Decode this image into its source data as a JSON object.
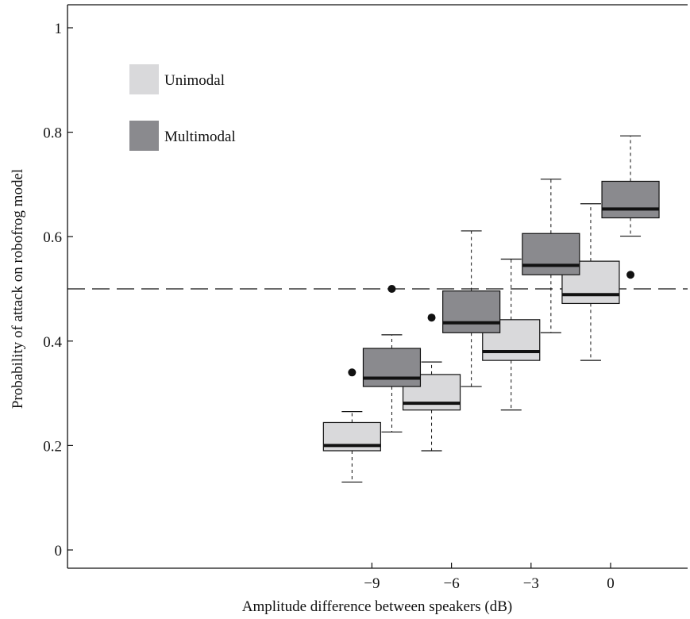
{
  "chart_data": {
    "type": "box",
    "title": "",
    "xlabel": "Amplitude difference between speakers (dB)",
    "ylabel": "Probability of attack on robofrog model",
    "ylim": [
      0,
      1
    ],
    "xlim": [
      -11.6,
      1.4
    ],
    "y_ticks": [
      0,
      0.2,
      0.4,
      0.6,
      0.8,
      1
    ],
    "y_tick_labels": [
      "0",
      "0.2",
      "0.4",
      "0.6",
      "0.8",
      "1"
    ],
    "x_ticks": [
      -9,
      -6,
      -3,
      0
    ],
    "x_tick_labels": [
      "−9",
      "−6",
      "−3",
      "0"
    ],
    "reference_line": {
      "y": 0.5,
      "style": "dashed"
    },
    "grid": false,
    "legend_position": "top-left",
    "colors": {
      "Unimodal": "#d9d9db",
      "Multimodal": "#8a8a8e",
      "median": "#111111"
    },
    "series": [
      {
        "name": "Unimodal",
        "boxes": [
          {
            "x": -9.75,
            "whisker_low": 0.13,
            "q1": 0.19,
            "median": 0.2,
            "q3": 0.244,
            "whisker_high": 0.265,
            "outliers": [
              0.34
            ]
          },
          {
            "x": -6.75,
            "whisker_low": 0.19,
            "q1": 0.268,
            "median": 0.281,
            "q3": 0.336,
            "whisker_high": 0.36,
            "outliers": [
              0.445
            ]
          },
          {
            "x": -3.75,
            "whisker_low": 0.268,
            "q1": 0.363,
            "median": 0.38,
            "q3": 0.441,
            "whisker_high": 0.557,
            "outliers": []
          },
          {
            "x": -0.75,
            "whisker_low": 0.363,
            "q1": 0.472,
            "median": 0.489,
            "q3": 0.553,
            "whisker_high": 0.663,
            "outliers": []
          }
        ]
      },
      {
        "name": "Multimodal",
        "boxes": [
          {
            "x": -8.25,
            "whisker_low": 0.226,
            "q1": 0.313,
            "median": 0.329,
            "q3": 0.386,
            "whisker_high": 0.412,
            "outliers": [
              0.5
            ]
          },
          {
            "x": -5.25,
            "whisker_low": 0.313,
            "q1": 0.416,
            "median": 0.435,
            "q3": 0.496,
            "whisker_high": 0.611,
            "outliers": []
          },
          {
            "x": -2.25,
            "whisker_low": 0.416,
            "q1": 0.527,
            "median": 0.545,
            "q3": 0.606,
            "whisker_high": 0.71,
            "outliers": []
          },
          {
            "x": 0.75,
            "whisker_low": 0.601,
            "q1": 0.636,
            "median": 0.653,
            "q3": 0.706,
            "whisker_high": 0.793,
            "outliers": [
              0.527
            ]
          }
        ]
      }
    ]
  }
}
